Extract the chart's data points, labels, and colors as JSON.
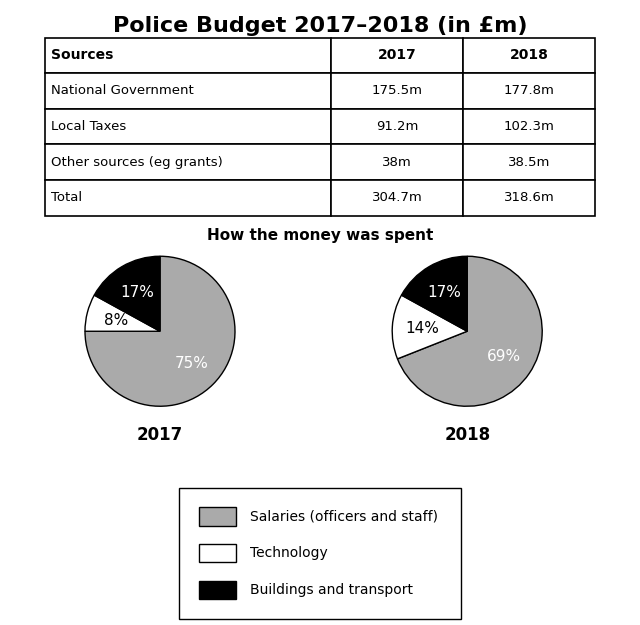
{
  "title": "Police Budget 2017–2018 (in £m)",
  "table": {
    "headers": [
      "Sources",
      "2017",
      "2018"
    ],
    "rows": [
      [
        "National Government",
        "175.5m",
        "177.8m"
      ],
      [
        "Local Taxes",
        "91.2m",
        "102.3m"
      ],
      [
        "Other sources (eg grants)",
        "38m",
        "38.5m"
      ],
      [
        "Total",
        "304.7m",
        "318.6m"
      ]
    ]
  },
  "pie_title": "How the money was spent",
  "pie_2017": {
    "label": "2017",
    "values": [
      75,
      8,
      17
    ],
    "pct_labels": [
      "75%",
      "8%",
      "17%"
    ],
    "colors": [
      "#aaaaaa",
      "#ffffff",
      "#000000"
    ],
    "startangle": 90
  },
  "pie_2018": {
    "label": "2018",
    "values": [
      69,
      14,
      17
    ],
    "pct_labels": [
      "69%",
      "14%",
      "17%"
    ],
    "colors": [
      "#aaaaaa",
      "#ffffff",
      "#000000"
    ],
    "startangle": 90
  },
  "legend_labels": [
    "Salaries (officers and staff)",
    "Technology",
    "Buildings and transport"
  ],
  "legend_colors": [
    "#aaaaaa",
    "#ffffff",
    "#000000"
  ],
  "background_color": "#ffffff",
  "title_fontsize": 16,
  "table_header_fontsize": 10,
  "table_row_fontsize": 9.5,
  "pie_subtitle_fontsize": 11,
  "pie_label_fontsize": 11,
  "year_label_fontsize": 12,
  "legend_fontsize": 10
}
